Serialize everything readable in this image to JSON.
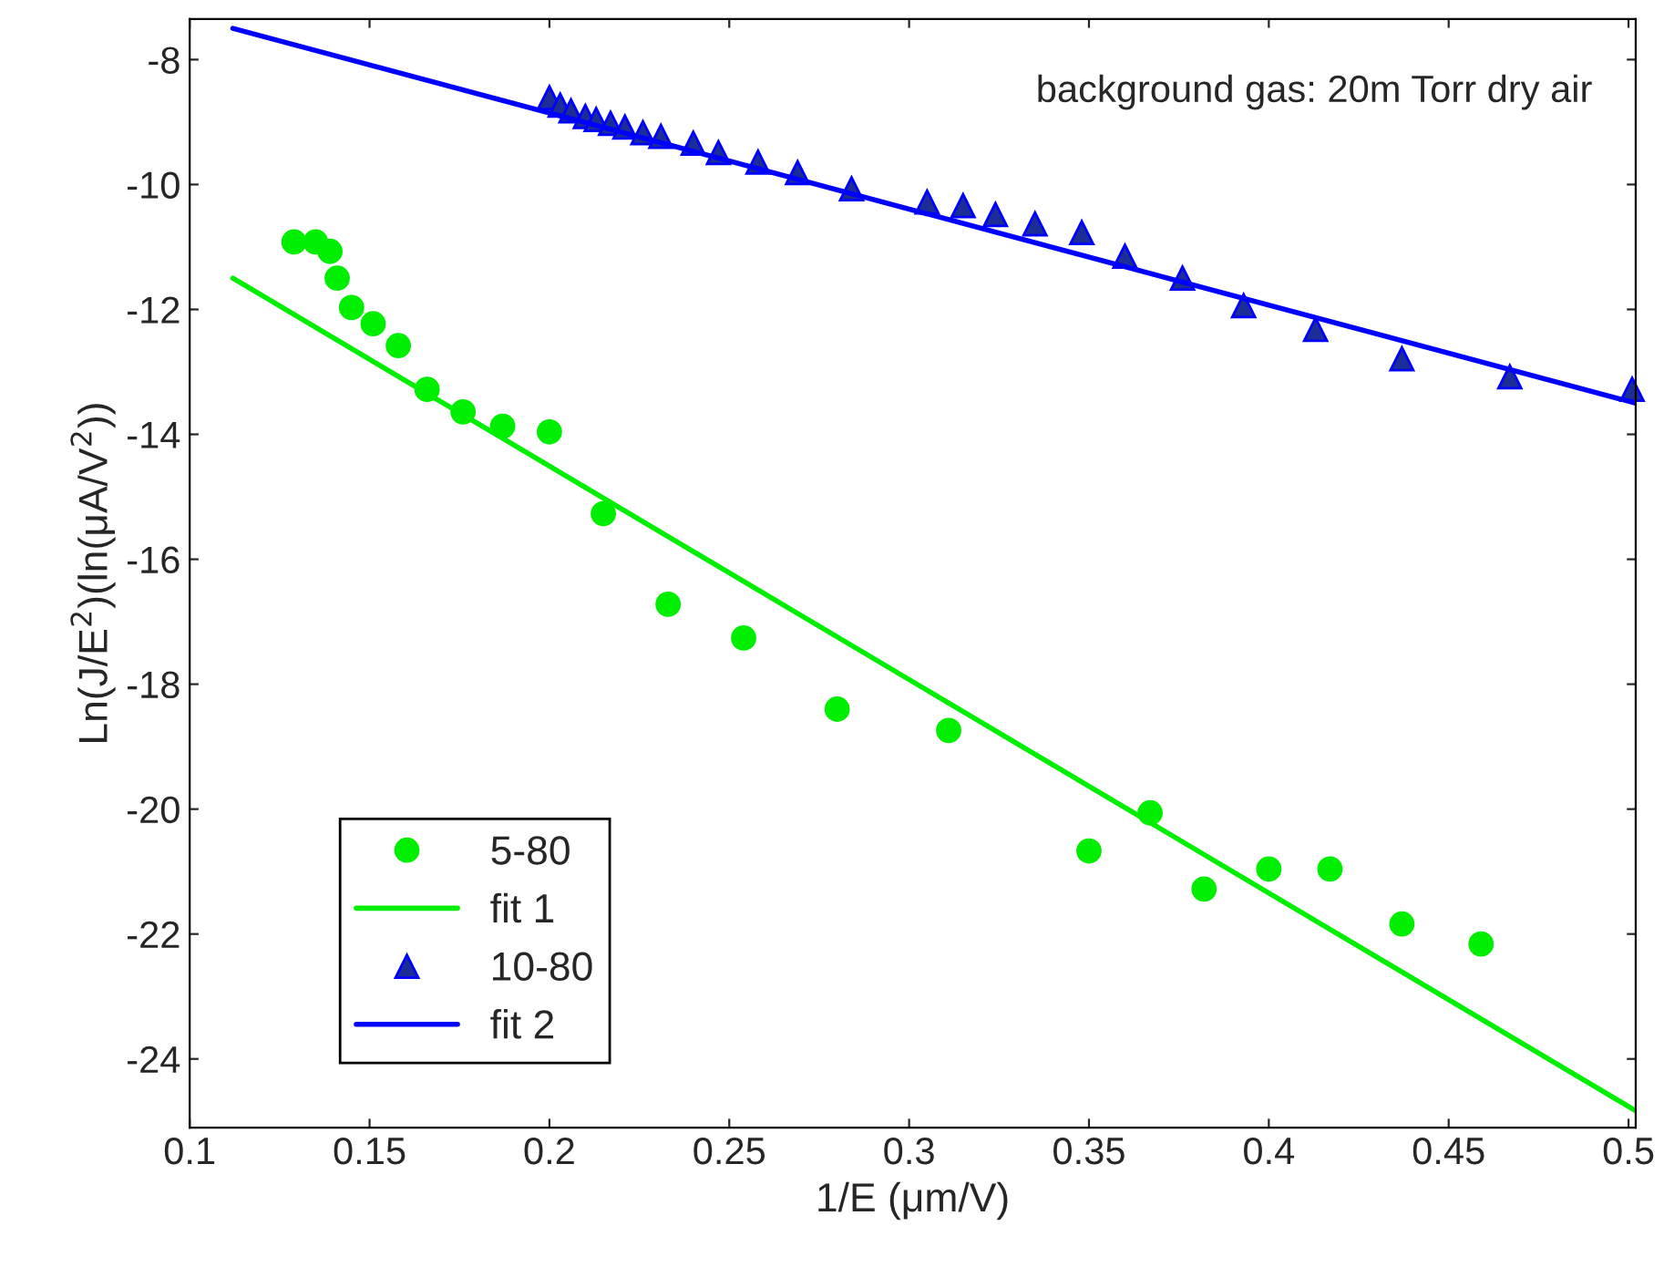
{
  "chart_data": {
    "type": "scatter",
    "xlabel": "1/E (μm/V)",
    "ylabel": "Ln(J/E$^{2}$)(ln(μA/V$^{2}$))",
    "annotations": [
      "background gas: 20m Torr dry air"
    ],
    "xlim": [
      0.1,
      0.502
    ],
    "ylim": [
      -25.1,
      -7.35
    ],
    "xticks": [
      0.1,
      0.15,
      0.2,
      0.25,
      0.3,
      0.35,
      0.4,
      0.45,
      0.5
    ],
    "yticks": [
      -24,
      -22,
      -20,
      -18,
      -16,
      -14,
      -12,
      -10,
      -8
    ],
    "grid": false,
    "legend": "bottom left",
    "series": [
      {
        "name": "5-80",
        "marker": "circle",
        "color": "#00ee00",
        "x": [
          0.129,
          0.135,
          0.139,
          0.141,
          0.145,
          0.151,
          0.158,
          0.166,
          0.176,
          0.187,
          0.2,
          0.215,
          0.233,
          0.254,
          0.28,
          0.311,
          0.35,
          0.367,
          0.382,
          0.4,
          0.417,
          0.437,
          0.459
        ],
        "values": [
          -10.92,
          -10.92,
          -11.07,
          -11.5,
          -11.97,
          -12.23,
          -12.58,
          -13.28,
          -13.64,
          -13.87,
          -13.96,
          -15.27,
          -16.72,
          -17.26,
          -18.4,
          -18.74,
          -20.67,
          -20.06,
          -21.28,
          -20.96,
          -20.96,
          -21.84,
          -22.16
        ]
      },
      {
        "name": "fit 1",
        "type": "line",
        "marker": "none",
        "color": "#00ee00",
        "x": [
          0.112,
          0.502
        ],
        "values": [
          -11.5,
          -24.83
        ]
      },
      {
        "name": "10-80",
        "marker": "triangle",
        "color": "#1c2d96",
        "x": [
          0.2,
          0.203,
          0.206,
          0.21,
          0.213,
          0.217,
          0.221,
          0.226,
          0.231,
          0.24,
          0.247,
          0.258,
          0.269,
          0.284,
          0.305,
          0.315,
          0.324,
          0.335,
          0.348,
          0.36,
          0.376,
          0.393,
          0.413,
          0.437,
          0.467,
          0.501
        ],
        "values": [
          -8.61,
          -8.73,
          -8.82,
          -8.91,
          -8.96,
          -9.02,
          -9.08,
          -9.17,
          -9.23,
          -9.34,
          -9.49,
          -9.64,
          -9.81,
          -10.07,
          -10.28,
          -10.34,
          -10.48,
          -10.63,
          -10.77,
          -11.15,
          -11.5,
          -11.94,
          -12.32,
          -12.79,
          -13.08,
          -13.28
        ]
      },
      {
        "name": "fit 2",
        "type": "line",
        "marker": "none",
        "color": "#0000ff",
        "x": [
          0.112,
          0.502
        ],
        "values": [
          -7.5,
          -13.5
        ]
      }
    ]
  }
}
